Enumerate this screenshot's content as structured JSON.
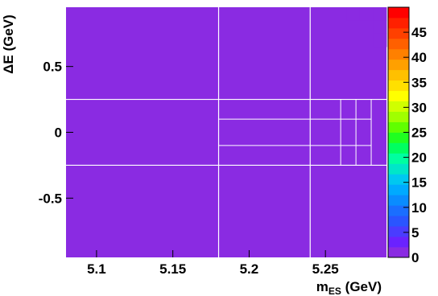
{
  "chart_data": {
    "type": "heatmap",
    "title": "",
    "xlabel_main": "m",
    "xlabel_sub": "ES",
    "xlabel_unit": " (GeV)",
    "ylabel": "ΔE (GeV)",
    "xlim": [
      5.08,
      5.29
    ],
    "ylim": [
      -0.95,
      0.95
    ],
    "x_ticks": [
      5.1,
      5.15,
      5.2,
      5.25
    ],
    "x_tick_labels": [
      "5.1",
      "5.15",
      "5.2",
      "5.25"
    ],
    "y_ticks": [
      0.5,
      0,
      -0.5
    ],
    "y_tick_labels": [
      "0.5",
      "0",
      "-0.5"
    ],
    "zlim": [
      0,
      50
    ],
    "z_ticks": [
      0,
      5,
      10,
      15,
      20,
      25,
      30,
      35,
      40,
      45
    ],
    "z_tick_labels": [
      "0",
      "5",
      "10",
      "15",
      "20",
      "25",
      "30",
      "35",
      "40",
      "45"
    ],
    "nx": 24,
    "ny": 19,
    "cells": [
      [
        0,
        0,
        0,
        0,
        0,
        0,
        0,
        0,
        0,
        0,
        0,
        0,
        0,
        0,
        0,
        0,
        0,
        0,
        0,
        0,
        0,
        1,
        1,
        1
      ],
      [
        0,
        0,
        0,
        0,
        0,
        0,
        0,
        0,
        0,
        0,
        0,
        0,
        0,
        0,
        0,
        0,
        0,
        0,
        0,
        0,
        0,
        0,
        0,
        1
      ],
      [
        0,
        0,
        0,
        0,
        0,
        0,
        0,
        0,
        0,
        0,
        0,
        0,
        0,
        0,
        0,
        0,
        0,
        0,
        0,
        0,
        0,
        0,
        0,
        1
      ],
      [
        0,
        0,
        0,
        0,
        0,
        0,
        0,
        0,
        0,
        0,
        0,
        0,
        0,
        0,
        0,
        0,
        0,
        0,
        0,
        0,
        0,
        0,
        0,
        0
      ],
      [
        0,
        0,
        0,
        0,
        0,
        0,
        0,
        0,
        0,
        0,
        0,
        0,
        0,
        0,
        0,
        0,
        0,
        0,
        0,
        0,
        0,
        0,
        0,
        0
      ],
      [
        0,
        0,
        0,
        0,
        0,
        0,
        0,
        0,
        0,
        0,
        0,
        0,
        0,
        0,
        0,
        0,
        0,
        0,
        0,
        0,
        0,
        0,
        0,
        0
      ],
      [
        0,
        0,
        0,
        0,
        0,
        0,
        0,
        0,
        0,
        0,
        0,
        0,
        0,
        0,
        0,
        0,
        0,
        0,
        0,
        0,
        0,
        0,
        0,
        0
      ],
      [
        0,
        0,
        0,
        0,
        0,
        0,
        0,
        0,
        0,
        0,
        0,
        0,
        0,
        0,
        0,
        0,
        0,
        0,
        0,
        0,
        0,
        0,
        0,
        0
      ],
      [
        0,
        0,
        0,
        0,
        0,
        0,
        0,
        0,
        0,
        0,
        0,
        0,
        0,
        0,
        0,
        0,
        0,
        0,
        0,
        0,
        0,
        0,
        0,
        0
      ],
      [
        0,
        0,
        0,
        0,
        0,
        0,
        0,
        0,
        0,
        0,
        0,
        0,
        0,
        0,
        0,
        0,
        0,
        0,
        0,
        0,
        0,
        0,
        0,
        0
      ],
      [
        0,
        0,
        0,
        0,
        0,
        0,
        0,
        0,
        0,
        0,
        0,
        0,
        0,
        0,
        0,
        0,
        0,
        0,
        0,
        0,
        0,
        0,
        0,
        0
      ],
      [
        0,
        0,
        0,
        0,
        0,
        0,
        0,
        0,
        0,
        0,
        0,
        0,
        0,
        0,
        0,
        0,
        0,
        0,
        0,
        0,
        0,
        0,
        0,
        0
      ],
      [
        0,
        0,
        0,
        0,
        0,
        0,
        0,
        0,
        0,
        0,
        0,
        0,
        0,
        0,
        0,
        0,
        0,
        0,
        0,
        0,
        0,
        0,
        0,
        0
      ],
      [
        0,
        0,
        0,
        0,
        0,
        0,
        0,
        0,
        0,
        0,
        0,
        0,
        0,
        0,
        0,
        0,
        0,
        0,
        0,
        0,
        0,
        0,
        0,
        0
      ],
      [
        0,
        0,
        0,
        0,
        0,
        0,
        0,
        0,
        0,
        0,
        0,
        0,
        0,
        0,
        0,
        0,
        0,
        0,
        0,
        0,
        0,
        0,
        0,
        0
      ],
      [
        0,
        0,
        0,
        0,
        0,
        0,
        0,
        0,
        0,
        0,
        0,
        0,
        0,
        0,
        0,
        0,
        0,
        0,
        0,
        0,
        0,
        0,
        0,
        0
      ],
      [
        0,
        0,
        0,
        0,
        0,
        0,
        0,
        0,
        0,
        0,
        0,
        0,
        0,
        0,
        0,
        0,
        0,
        0,
        0,
        0,
        0,
        0,
        0,
        0
      ],
      [
        0,
        0,
        0,
        0,
        0,
        0,
        0,
        0,
        0,
        0,
        0,
        0,
        0,
        0,
        0,
        0,
        0,
        0,
        0,
        0,
        0,
        0,
        0,
        0
      ],
      [
        0,
        0,
        0,
        0,
        0,
        0,
        0,
        0,
        0,
        0,
        0,
        0,
        0,
        0,
        0,
        0,
        0,
        0,
        0,
        0,
        0,
        0,
        0,
        0
      ]
    ],
    "grid_x": [
      5.18,
      5.24
    ],
    "grid_y": [
      0.25,
      -0.25
    ],
    "fine_grid_x": [
      5.26,
      5.27,
      5.28
    ],
    "fine_grid_y": [
      0.1,
      -0.1
    ],
    "colors": {
      "background": "#ffffff",
      "grid": "#ffffff",
      "palette": [
        "#8a2be2"
      ]
    }
  }
}
